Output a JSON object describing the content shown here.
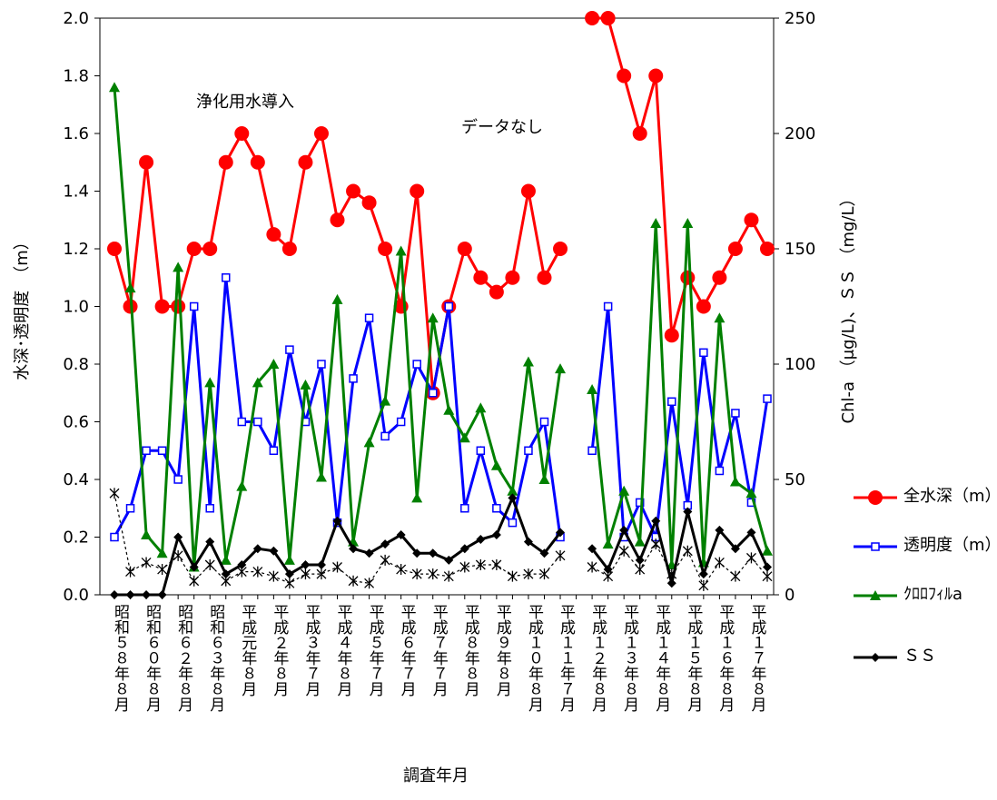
{
  "chart_data": {
    "type": "line",
    "x_label": "調査年月",
    "y_label": "水深･透明度　（m）",
    "y2_label": "Chl-a （μg/L)、ＳＳ （mg/L）",
    "annotations": [
      "浄化用水導入",
      "データなし"
    ],
    "categories": [
      "昭和５８年８月",
      null,
      "昭和６０年８月",
      null,
      "昭和６２年８月",
      null,
      "昭和６３年８月",
      null,
      "平成元年８月",
      null,
      "平成２年８月",
      null,
      "平成３年７月",
      null,
      "平成４年８月",
      null,
      "平成５年７月",
      null,
      "平成６年７月",
      null,
      "平成７年７月",
      null,
      "平成８年８月",
      null,
      "平成９年８月",
      null,
      "平成１０年８月",
      null,
      "平成１１年７月",
      null,
      "平成１２年８月",
      null,
      "平成１３年８月",
      null,
      "平成１４年８月",
      null,
      "平成１５年８月",
      null,
      "平成１６年８月",
      null,
      "平成１７年８月",
      null
    ],
    "ylim": [
      0,
      2
    ],
    "yticks": [
      {
        "value": 0,
        "label": "0.0"
      },
      0.2,
      0.4,
      0.6,
      0.8,
      {
        "value": 1,
        "label": "1.0"
      },
      1.2,
      1.4,
      1.6,
      1.8,
      {
        "value": 2,
        "label": "2.0"
      }
    ],
    "y2lim": [
      0,
      250
    ],
    "y2ticks": [
      0,
      50,
      100,
      150,
      200,
      250
    ],
    "series": [
      {
        "name": "全水深（m）",
        "color": "#ff0000",
        "marker": "circle",
        "values": [
          1.2,
          1.0,
          1.5,
          1.0,
          1.0,
          1.2,
          1.2,
          1.5,
          1.6,
          1.5,
          1.25,
          1.2,
          1.5,
          1.6,
          1.3,
          1.4,
          1.36,
          1.2,
          1.0,
          1.4,
          0.7,
          1.0,
          1.2,
          1.1,
          1.05,
          1.1,
          1.4,
          1.1,
          1.2,
          null,
          2.0,
          2.0,
          1.8,
          1.6,
          1.8,
          0.9,
          1.1,
          1.0,
          1.1,
          1.2,
          1.3,
          1.2
        ]
      },
      {
        "name": "透明度（m）",
        "color": "#0000ff",
        "marker": "square",
        "values": [
          0.2,
          0.3,
          0.5,
          0.5,
          0.4,
          1.0,
          0.3,
          1.1,
          0.6,
          0.6,
          0.5,
          0.85,
          0.6,
          0.8,
          0.25,
          0.75,
          0.96,
          0.55,
          0.6,
          0.8,
          0.7,
          1.0,
          0.3,
          0.5,
          0.3,
          0.25,
          0.5,
          0.6,
          0.2,
          null,
          0.5,
          1.0,
          0.2,
          0.32,
          0.2,
          0.67,
          0.31,
          0.84,
          0.43,
          0.63,
          0.32,
          0.68
        ]
      },
      {
        "name": "ｸﾛﾛﾌｨﾙa",
        "color": "#008000",
        "marker": "triangle",
        "axis": "y2",
        "values": [
          220,
          133,
          26,
          18,
          142,
          12,
          92,
          15,
          47,
          92,
          100,
          15,
          91,
          51,
          128,
          23,
          66,
          84,
          149,
          42,
          120,
          80,
          68,
          81,
          56,
          45,
          101,
          50,
          98,
          null,
          89,
          22,
          45,
          23,
          161,
          13,
          161,
          14,
          120,
          49,
          44,
          19
        ]
      },
      {
        "color": "#000000",
        "marker": "star",
        "dashed": true,
        "axis": "y2",
        "values": [
          44,
          10,
          14,
          11,
          17,
          6,
          13,
          6,
          10,
          10,
          8,
          5,
          9,
          9,
          12,
          6,
          5,
          15,
          11,
          9,
          9,
          8,
          12,
          13,
          13,
          8,
          9,
          9,
          17,
          null,
          12,
          8,
          19,
          11,
          22,
          9,
          19,
          4,
          14,
          8,
          16,
          8
        ]
      },
      {
        "name": "ＳＳ",
        "color": "#000000",
        "marker": "diamond",
        "axis": "y2",
        "values": [
          0,
          0,
          0,
          0,
          25,
          12,
          23,
          9,
          13,
          20,
          19,
          9,
          13,
          13,
          32,
          20,
          18,
          22,
          26,
          18,
          18,
          15,
          20,
          24,
          26,
          42,
          23,
          18,
          27,
          null,
          20,
          11,
          28,
          15,
          32,
          5,
          36,
          9,
          28,
          20,
          27,
          12
        ]
      }
    ]
  }
}
